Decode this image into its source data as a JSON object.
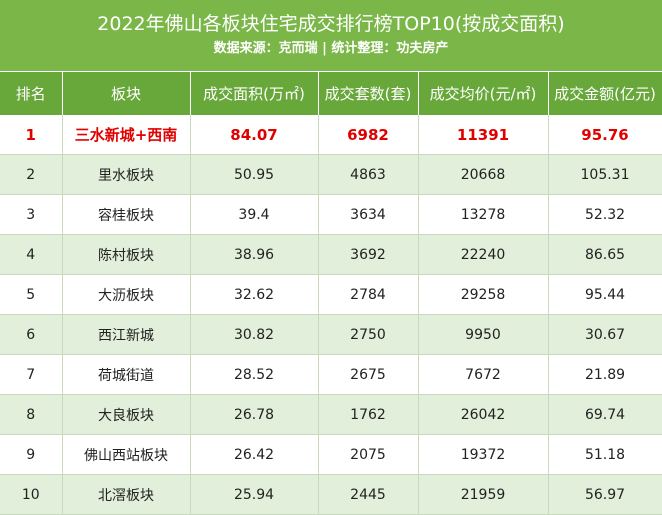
{
  "header": {
    "title": "2022年佛山各板块住宅成交排行榜TOP10(按成交面积)",
    "subtitle": "数据来源：克而瑞 | 统计整理：功夫房产"
  },
  "table": {
    "columns": [
      "排名",
      "板块",
      "成交面积(万㎡)",
      "成交套数(套)",
      "成交均价(元/㎡)",
      "成交金额(亿元)"
    ],
    "rows": [
      [
        "1",
        "三水新城+西南",
        "84.07",
        "6982",
        "11391",
        "95.76"
      ],
      [
        "2",
        "里水板块",
        "50.95",
        "4863",
        "20668",
        "105.31"
      ],
      [
        "3",
        "容桂板块",
        "39.4",
        "3634",
        "13278",
        "52.32"
      ],
      [
        "4",
        "陈村板块",
        "38.96",
        "3692",
        "22240",
        "86.65"
      ],
      [
        "5",
        "大沥板块",
        "32.62",
        "2784",
        "29258",
        "95.44"
      ],
      [
        "6",
        "西江新城",
        "30.82",
        "2750",
        "9950",
        "30.67"
      ],
      [
        "7",
        "荷城街道",
        "28.52",
        "2675",
        "7672",
        "21.89"
      ],
      [
        "8",
        "大良板块",
        "26.78",
        "1762",
        "26042",
        "69.74"
      ],
      [
        "9",
        "佛山西站板块",
        "26.42",
        "2075",
        "19372",
        "51.18"
      ],
      [
        "10",
        "北滘板块",
        "25.94",
        "2445",
        "21959",
        "56.97"
      ]
    ]
  }
}
